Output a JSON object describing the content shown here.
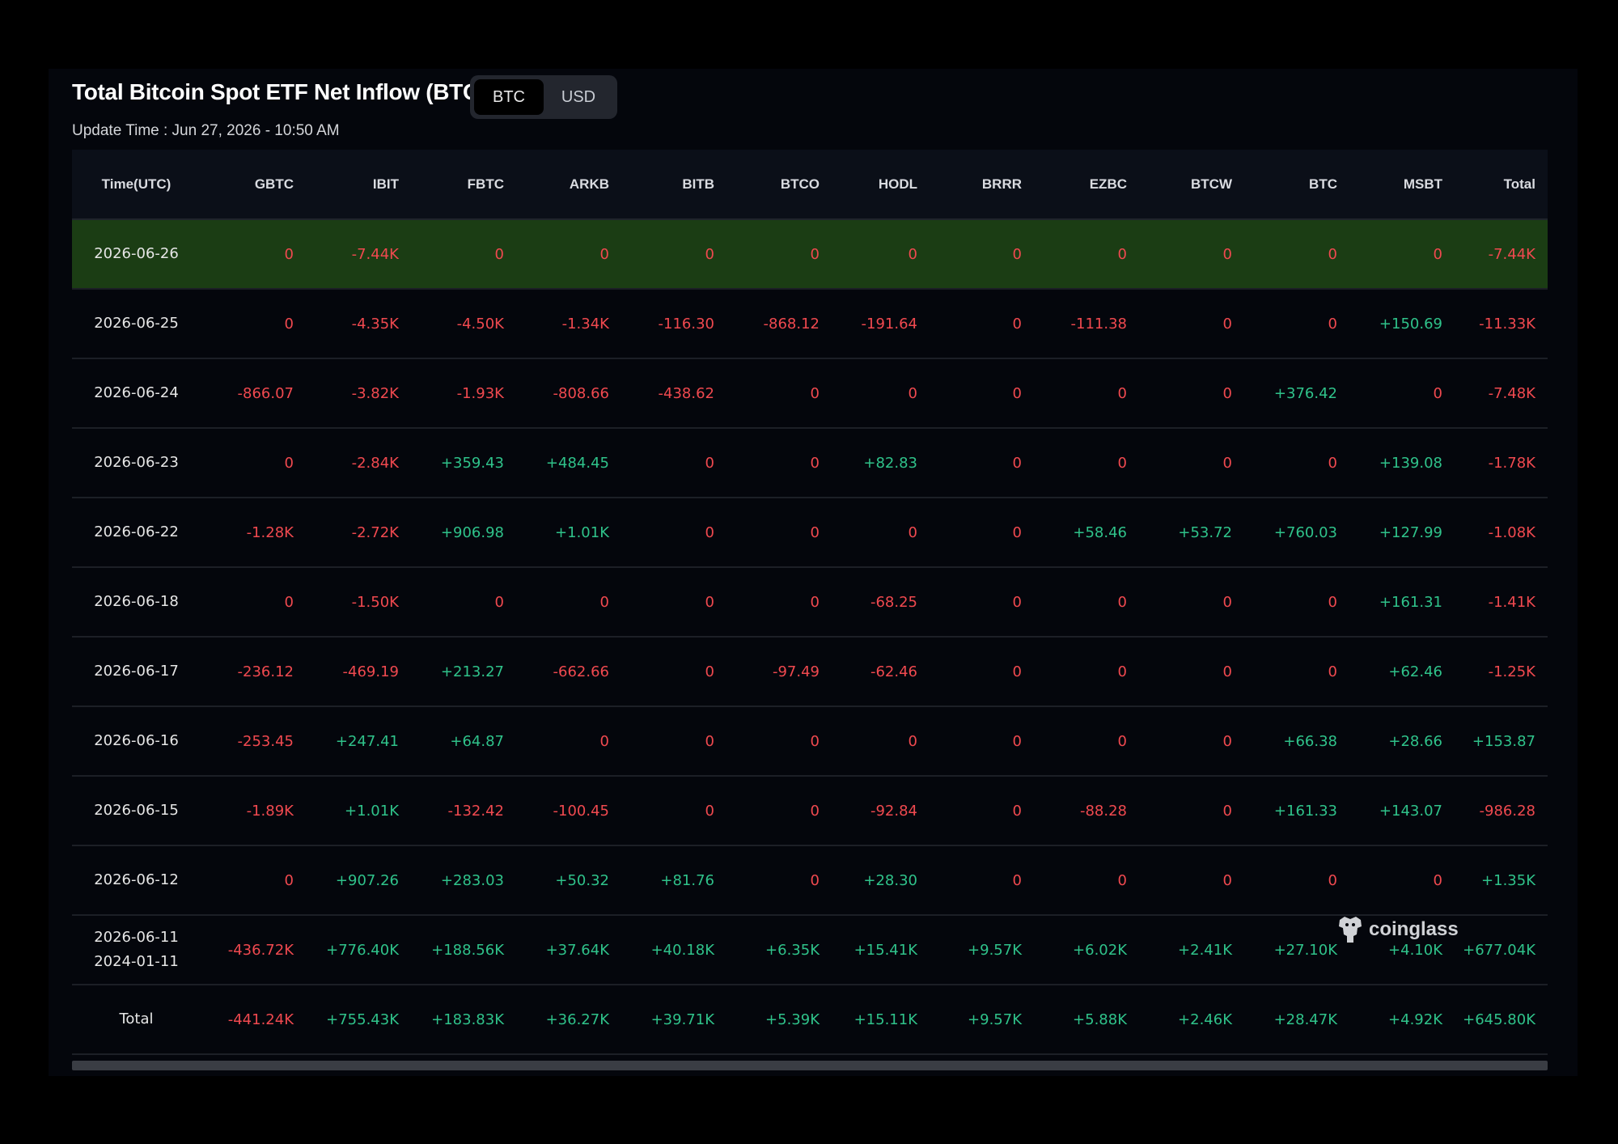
{
  "title": "Total Bitcoin Spot ETF Net Inflow (BTC)",
  "toggle": {
    "options": [
      "BTC",
      "USD"
    ],
    "selected": "BTC"
  },
  "update_time": "Update Time : Jun 27, 2026 - 10:50 AM",
  "watermark": "coinglass",
  "colors": {
    "negative": "#f0494f",
    "positive": "#2fc28a",
    "highlight_row": "#1b3d14"
  },
  "columns": [
    "Time(UTC)",
    "GBTC",
    "IBIT",
    "FBTC",
    "ARKB",
    "BITB",
    "BTCO",
    "HODL",
    "BRRR",
    "EZBC",
    "BTCW",
    "BTC",
    "MSBT",
    "Total"
  ],
  "rows": [
    {
      "date": [
        "2026-06-26"
      ],
      "highlight": true,
      "values": [
        "0",
        "-7.44K",
        "0",
        "0",
        "0",
        "0",
        "0",
        "0",
        "0",
        "0",
        "0",
        "0",
        "-7.44K"
      ]
    },
    {
      "date": [
        "2026-06-25"
      ],
      "values": [
        "0",
        "-4.35K",
        "-4.50K",
        "-1.34K",
        "-116.30",
        "-868.12",
        "-191.64",
        "0",
        "-111.38",
        "0",
        "0",
        "+150.69",
        "-11.33K"
      ]
    },
    {
      "date": [
        "2026-06-24"
      ],
      "values": [
        "-866.07",
        "-3.82K",
        "-1.93K",
        "-808.66",
        "-438.62",
        "0",
        "0",
        "0",
        "0",
        "0",
        "+376.42",
        "0",
        "-7.48K"
      ]
    },
    {
      "date": [
        "2026-06-23"
      ],
      "values": [
        "0",
        "-2.84K",
        "+359.43",
        "+484.45",
        "0",
        "0",
        "+82.83",
        "0",
        "0",
        "0",
        "0",
        "+139.08",
        "-1.78K"
      ]
    },
    {
      "date": [
        "2026-06-22"
      ],
      "values": [
        "-1.28K",
        "-2.72K",
        "+906.98",
        "+1.01K",
        "0",
        "0",
        "0",
        "0",
        "+58.46",
        "+53.72",
        "+760.03",
        "+127.99",
        "-1.08K"
      ]
    },
    {
      "date": [
        "2026-06-18"
      ],
      "values": [
        "0",
        "-1.50K",
        "0",
        "0",
        "0",
        "0",
        "-68.25",
        "0",
        "0",
        "0",
        "0",
        "+161.31",
        "-1.41K"
      ]
    },
    {
      "date": [
        "2026-06-17"
      ],
      "values": [
        "-236.12",
        "-469.19",
        "+213.27",
        "-662.66",
        "0",
        "-97.49",
        "-62.46",
        "0",
        "0",
        "0",
        "0",
        "+62.46",
        "-1.25K"
      ]
    },
    {
      "date": [
        "2026-06-16"
      ],
      "values": [
        "-253.45",
        "+247.41",
        "+64.87",
        "0",
        "0",
        "0",
        "0",
        "0",
        "0",
        "0",
        "+66.38",
        "+28.66",
        "+153.87"
      ]
    },
    {
      "date": [
        "2026-06-15"
      ],
      "values": [
        "-1.89K",
        "+1.01K",
        "-132.42",
        "-100.45",
        "0",
        "0",
        "-92.84",
        "0",
        "-88.28",
        "0",
        "+161.33",
        "+143.07",
        "-986.28"
      ]
    },
    {
      "date": [
        "2026-06-12"
      ],
      "values": [
        "0",
        "+907.26",
        "+283.03",
        "+50.32",
        "+81.76",
        "0",
        "+28.30",
        "0",
        "0",
        "0",
        "0",
        "0",
        "+1.35K"
      ]
    },
    {
      "date": [
        "2026-06-11",
        "2024-01-11"
      ],
      "values": [
        "-436.72K",
        "+776.40K",
        "+188.56K",
        "+37.64K",
        "+40.18K",
        "+6.35K",
        "+15.41K",
        "+9.57K",
        "+6.02K",
        "+2.41K",
        "+27.10K",
        "+4.10K",
        "+677.04K"
      ]
    },
    {
      "date": [
        "Total"
      ],
      "values": [
        "-441.24K",
        "+755.43K",
        "+183.83K",
        "+36.27K",
        "+39.71K",
        "+5.39K",
        "+15.11K",
        "+9.57K",
        "+5.88K",
        "+2.46K",
        "+28.47K",
        "+4.92K",
        "+645.80K"
      ]
    }
  ]
}
